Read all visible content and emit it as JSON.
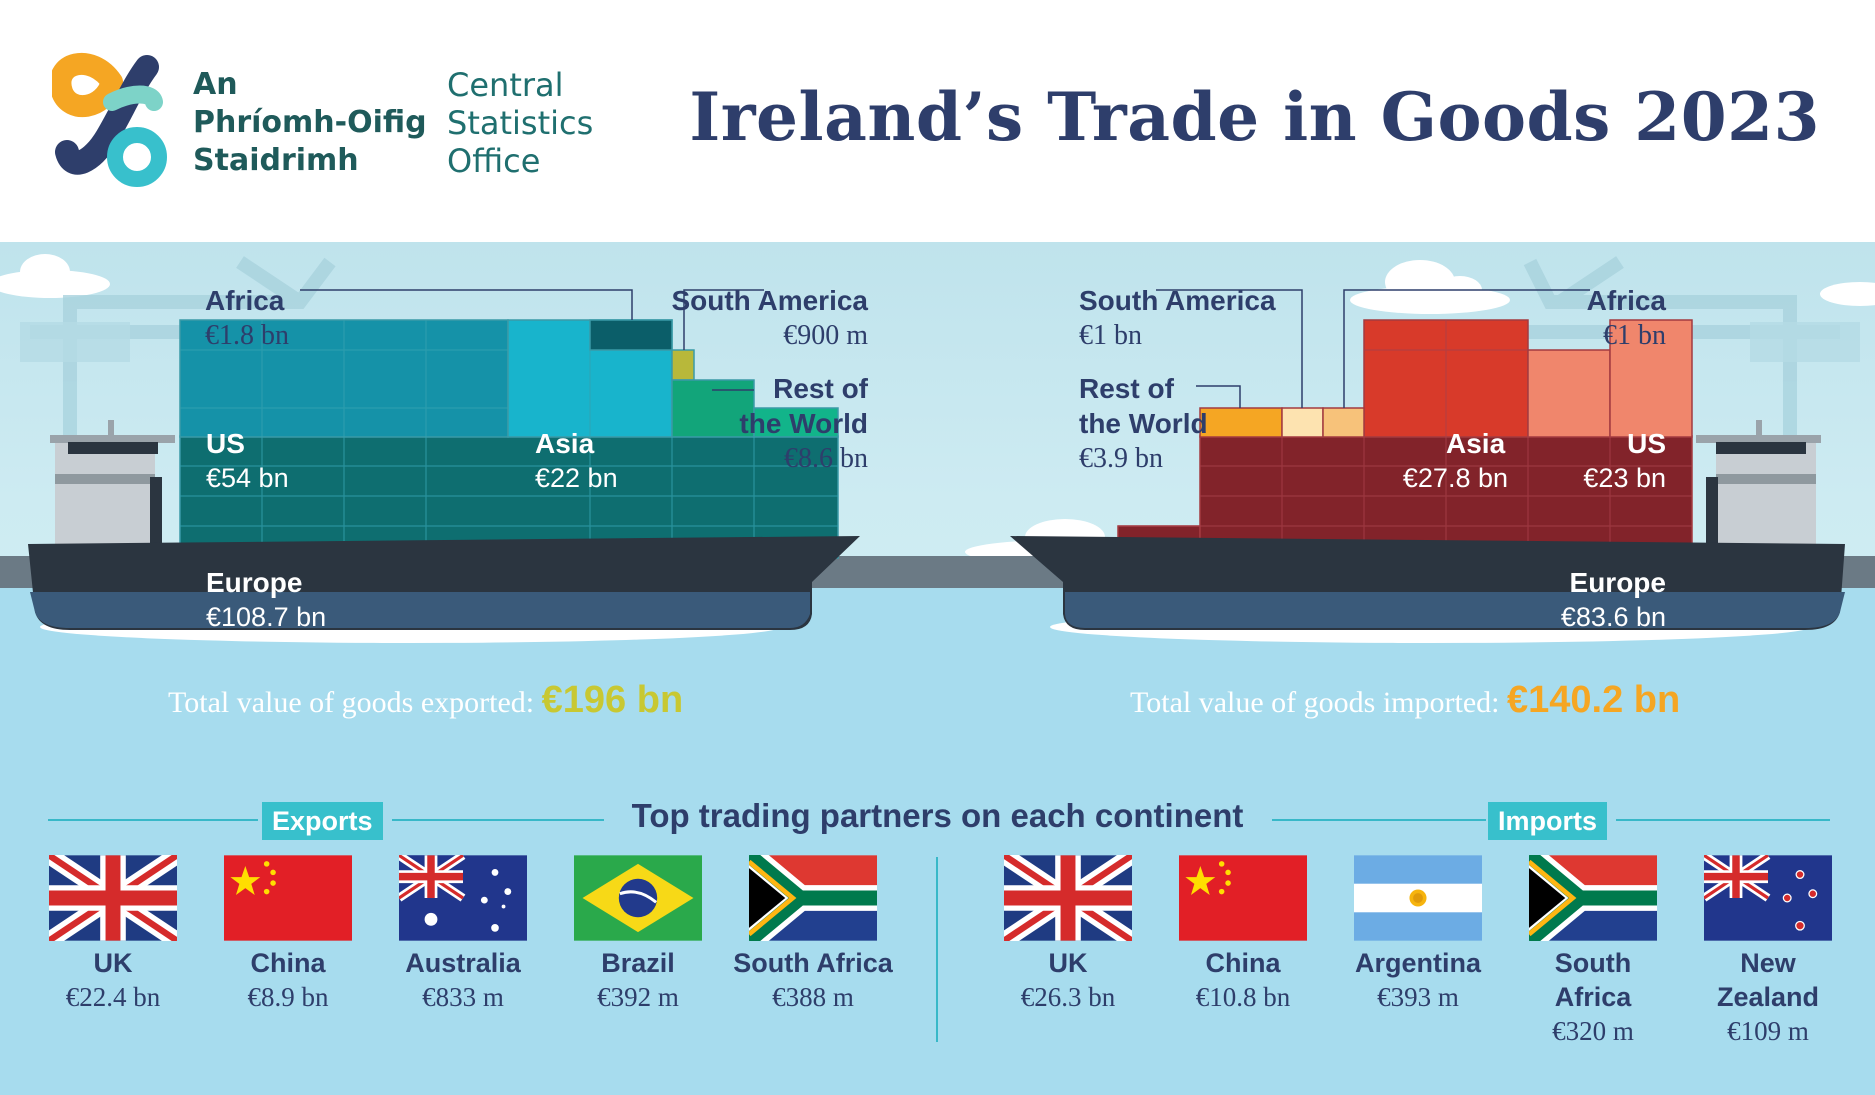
{
  "header": {
    "logo_irish_line1": "An",
    "logo_irish_line2": "Phríomh-Oifig",
    "logo_irish_line3": "Staidrimh",
    "logo_english_line1": "Central",
    "logo_english_line2": "Statistics",
    "logo_english_line3": "Office",
    "title": "Ireland’s Trade in Goods 2023"
  },
  "exports": {
    "total_label": "Total value of goods exported:",
    "total_value": "€196 bn",
    "blocks": [
      {
        "name": "Africa",
        "value": "€1.8 bn"
      },
      {
        "name": "South America",
        "value": "€900 m"
      },
      {
        "name": "Rest of the World",
        "name_line1": "Rest of",
        "name_line2": "the World",
        "value": "€8.6 bn"
      },
      {
        "name": "US",
        "value": "€54 bn"
      },
      {
        "name": "Asia",
        "value": "€22 bn"
      },
      {
        "name": "Europe",
        "value": "€108.7 bn"
      }
    ]
  },
  "imports": {
    "total_label": "Total value of goods imported:",
    "total_value": "€140.2 bn",
    "blocks": [
      {
        "name": "South America",
        "value": "€1 bn"
      },
      {
        "name": "Africa",
        "value": "€1 bn"
      },
      {
        "name": "Rest of the World",
        "name_line1": "Rest of",
        "name_line2": "the World",
        "value": "€3.9 bn"
      },
      {
        "name": "Asia",
        "value": "€27.8 bn"
      },
      {
        "name": "US",
        "value": "€23 bn"
      },
      {
        "name": "Europe",
        "value": "€83.6 bn"
      }
    ]
  },
  "partners": {
    "title": "Top trading partners on each continent",
    "exports_tag": "Exports",
    "imports_tag": "Imports",
    "exports": [
      {
        "country": "UK",
        "value": "€22.4 bn",
        "flag": "uk-flag"
      },
      {
        "country": "China",
        "value": "€8.9 bn",
        "flag": "china-flag"
      },
      {
        "country": "Australia",
        "value": "€833 m",
        "flag": "australia-flag"
      },
      {
        "country": "Brazil",
        "value": "€392 m",
        "flag": "brazil-flag"
      },
      {
        "country": "South Africa",
        "value": "€388 m",
        "flag": "south-africa-flag"
      }
    ],
    "imports": [
      {
        "country": "UK",
        "value": "€26.3 bn",
        "flag": "uk-flag"
      },
      {
        "country": "China",
        "value": "€10.8 bn",
        "flag": "china-flag"
      },
      {
        "country": "Argentina",
        "value": "€393 m",
        "flag": "argentina-flag"
      },
      {
        "country": "South Africa",
        "country_line1": "South",
        "country_line2": "Africa",
        "value": "€320 m",
        "flag": "south-africa-flag"
      },
      {
        "country": "New Zealand",
        "country_line1": "New",
        "country_line2": "Zealand",
        "value": "€109 m",
        "flag": "new-zealand-flag"
      }
    ]
  },
  "colors": {
    "title_navy": "#2e3e6b",
    "export_total": "#c8c832",
    "import_total": "#f5a623",
    "export_europe": "#0e6e70",
    "export_us": "#1592a8",
    "export_asia": "#18b4cc",
    "import_europe": "#82232a",
    "import_asia": "#d83a2a",
    "import_us": "#f0866c",
    "tag_bg": "#38c0cc"
  }
}
